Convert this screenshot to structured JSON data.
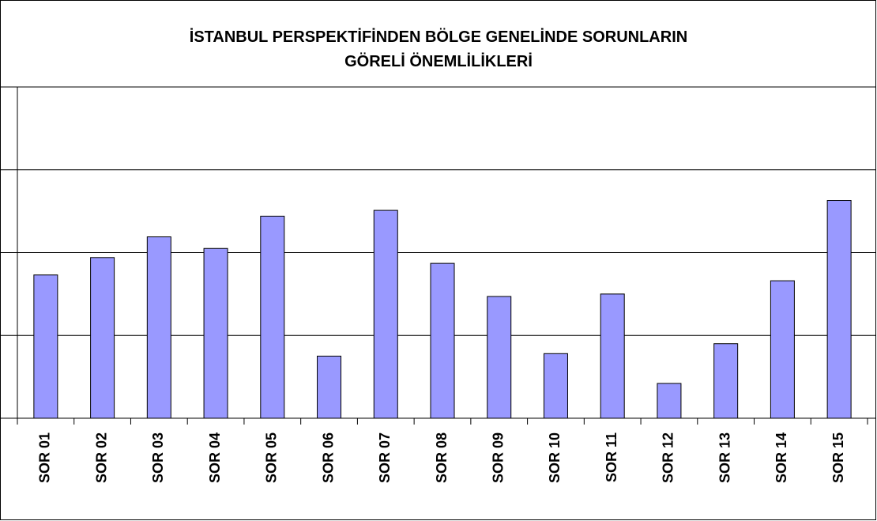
{
  "chart_data": {
    "type": "bar",
    "title": [
      "İSTANBUL PERSPEKTİFİNDEN BÖLGE GENELİNDE SORUNLARIN",
      "GÖRELİ ÖNEMLİLİKLERİ"
    ],
    "categories": [
      "SOR 01",
      "SOR 02",
      "SOR 03",
      "SOR 04",
      "SOR 05",
      "SOR 06",
      "SOR 07",
      "SOR 08",
      "SOR 09",
      "SOR 10",
      "SOR 11",
      "SOR 12",
      "SOR 13",
      "SOR 14",
      "SOR 15"
    ],
    "values": [
      1.73,
      1.94,
      2.19,
      2.05,
      2.44,
      0.75,
      2.51,
      1.87,
      1.47,
      0.78,
      1.5,
      0.42,
      0.9,
      1.66,
      2.63
    ],
    "color": "#9999ff",
    "ylim": [
      0,
      4
    ],
    "yticks": [
      0,
      1,
      2,
      3,
      4
    ],
    "grid": true
  }
}
